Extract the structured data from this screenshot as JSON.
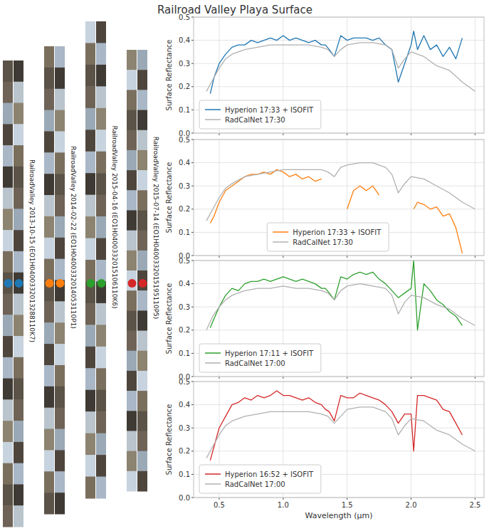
{
  "title": "Railroad Valley Playa Surface",
  "strips": [
    {
      "label": "RailroadValley 2013-10-15 (EO1H0400332013288110K7)",
      "color": "#1f77b4"
    },
    {
      "label": "RailroadValley 2014-02-22 (EO1H0400332014053110P1)",
      "color": "#ff7f0e"
    },
    {
      "label": "RailroadValley 2015-04-16 (EO1H0400332015106110K6)",
      "color": "#2ca02c"
    },
    {
      "label": "RailroadValley 2015-07-14 (EO1H0400332015195110P5)",
      "color": "#d62728"
    }
  ],
  "chart_data": [
    {
      "type": "line",
      "ylabel": "Surface Reflectance",
      "xlim": [
        0.3,
        2.57
      ],
      "ylim": [
        0,
        0.5
      ],
      "xticks": [
        0.5,
        {
          "value": 1,
          "label": "1.0"
        },
        1.5,
        {
          "value": 2,
          "label": "2.0"
        },
        2.5
      ],
      "yticks": [
        {
          "value": 0,
          "label": "0.0"
        },
        0.1,
        0.2,
        0.3,
        0.4,
        0.5
      ],
      "grid": true,
      "legend": "lower left",
      "tick_labels": "y",
      "series": [
        {
          "name": "Hyperion 17:33 + ISOFIT",
          "color": "#1f77b4",
          "x": [
            0.43,
            0.46,
            0.5,
            0.55,
            0.6,
            0.65,
            0.7,
            0.75,
            0.8,
            0.85,
            0.9,
            0.95,
            1.0,
            1.05,
            1.1,
            1.15,
            1.2,
            1.25,
            1.3,
            1.33,
            1.36,
            1.4,
            1.45,
            1.5,
            1.55,
            1.6,
            1.65,
            1.7,
            1.75,
            1.8,
            1.85,
            1.9,
            1.95,
            2.0,
            2.02,
            2.05,
            2.1,
            2.15,
            2.2,
            2.25,
            2.3,
            2.35,
            2.4
          ],
          "values": [
            0.17,
            0.24,
            0.3,
            0.34,
            0.37,
            0.38,
            0.38,
            0.4,
            0.39,
            0.4,
            0.41,
            0.4,
            0.42,
            0.4,
            0.41,
            0.4,
            0.39,
            0.4,
            0.38,
            0.38,
            0.36,
            0.33,
            0.42,
            0.4,
            0.41,
            0.41,
            0.41,
            0.4,
            0.41,
            0.38,
            0.36,
            0.22,
            0.3,
            0.38,
            0.44,
            0.36,
            0.42,
            0.36,
            0.38,
            0.33,
            0.37,
            0.32,
            0.41
          ]
        },
        {
          "name": "RadCalNet 17:30",
          "color": "#b0b0b0",
          "x": [
            0.4,
            0.45,
            0.5,
            0.55,
            0.6,
            0.7,
            0.8,
            0.9,
            1.0,
            1.1,
            1.2,
            1.3,
            1.35,
            1.4,
            1.45,
            1.5,
            1.6,
            1.7,
            1.8,
            1.85,
            1.9,
            1.95,
            2.0,
            2.1,
            2.2,
            2.3,
            2.4,
            2.5
          ],
          "values": [
            0.18,
            0.23,
            0.28,
            0.32,
            0.34,
            0.36,
            0.37,
            0.38,
            0.38,
            0.38,
            0.38,
            0.37,
            0.36,
            0.33,
            0.36,
            0.38,
            0.39,
            0.39,
            0.38,
            0.36,
            0.28,
            0.32,
            0.35,
            0.33,
            0.29,
            0.27,
            0.22,
            0.18
          ]
        }
      ]
    },
    {
      "type": "line",
      "ylabel": "Surface Reflectance",
      "xlim": [
        0.3,
        2.57
      ],
      "ylim": [
        0,
        0.5
      ],
      "xticks": [
        0.5,
        {
          "value": 1,
          "label": "1.0"
        },
        1.5,
        {
          "value": 2,
          "label": "2.0"
        },
        2.5
      ],
      "yticks": [
        {
          "value": 0,
          "label": "0.0"
        },
        0.1,
        0.2,
        0.3,
        0.4,
        0.5
      ],
      "grid": true,
      "legend": "lower center",
      "tick_labels": "y",
      "series": [
        {
          "name": "Hyperion 17:33 + ISOFIT",
          "color": "#ff7f0e",
          "x": [
            0.43,
            0.46,
            0.5,
            0.55,
            0.6,
            0.65,
            0.7,
            0.75,
            0.8,
            0.85,
            0.9,
            0.95,
            1.0,
            1.05,
            1.1,
            1.15,
            1.2,
            1.25,
            1.3,
            1.33,
            1.36,
            1.4,
            1.45,
            1.5,
            1.55,
            1.6,
            1.65,
            1.7,
            1.75,
            1.8,
            1.85,
            1.9,
            1.95,
            2.0,
            2.02,
            2.05,
            2.1,
            2.15,
            2.2,
            2.25,
            2.3,
            2.35,
            2.4
          ],
          "values": [
            0.14,
            0.17,
            0.23,
            0.28,
            0.3,
            0.32,
            0.34,
            0.35,
            0.35,
            0.36,
            0.35,
            0.37,
            0.36,
            0.34,
            0.35,
            0.33,
            0.34,
            0.32,
            0.33,
            null,
            null,
            null,
            null,
            0.2,
            0.28,
            0.3,
            0.28,
            0.3,
            0.26,
            null,
            null,
            null,
            null,
            null,
            0.2,
            0.23,
            0.22,
            0.2,
            0.21,
            0.17,
            0.18,
            0.12,
            0.01
          ]
        },
        {
          "name": "RadCalNet 17:30",
          "color": "#b0b0b0",
          "x": [
            0.4,
            0.45,
            0.5,
            0.55,
            0.6,
            0.7,
            0.8,
            0.9,
            1.0,
            1.1,
            1.2,
            1.3,
            1.35,
            1.4,
            1.45,
            1.5,
            1.6,
            1.7,
            1.8,
            1.85,
            1.9,
            1.95,
            2.0,
            2.1,
            2.2,
            2.3,
            2.4,
            2.5
          ],
          "values": [
            0.15,
            0.2,
            0.25,
            0.29,
            0.31,
            0.34,
            0.35,
            0.36,
            0.37,
            0.37,
            0.37,
            0.37,
            0.36,
            0.34,
            0.38,
            0.39,
            0.4,
            0.4,
            0.38,
            0.35,
            0.27,
            0.31,
            0.34,
            0.33,
            0.3,
            0.27,
            0.23,
            0.2
          ]
        }
      ]
    },
    {
      "type": "line",
      "ylabel": "Surface Reflectance",
      "xlim": [
        0.3,
        2.57
      ],
      "ylim": [
        0,
        0.5
      ],
      "xticks": [
        0.5,
        {
          "value": 1,
          "label": "1.0"
        },
        1.5,
        {
          "value": 2,
          "label": "2.0"
        },
        2.5
      ],
      "yticks": [
        {
          "value": 0,
          "label": "0.0"
        },
        0.1,
        0.2,
        0.3,
        0.4,
        0.5
      ],
      "grid": true,
      "legend": "lower left",
      "tick_labels": "y",
      "series": [
        {
          "name": "Hyperion 17:11 + ISOFIT",
          "color": "#2ca02c",
          "x": [
            0.43,
            0.46,
            0.5,
            0.55,
            0.6,
            0.65,
            0.7,
            0.75,
            0.8,
            0.85,
            0.9,
            0.95,
            1.0,
            1.05,
            1.1,
            1.15,
            1.2,
            1.25,
            1.3,
            1.33,
            1.36,
            1.4,
            1.45,
            1.5,
            1.55,
            1.6,
            1.65,
            1.7,
            1.75,
            1.8,
            1.85,
            1.9,
            1.95,
            2.0,
            2.02,
            2.05,
            2.1,
            2.15,
            2.2,
            2.25,
            2.3,
            2.35,
            2.4
          ],
          "values": [
            0.21,
            0.25,
            0.3,
            0.35,
            0.38,
            0.37,
            0.4,
            0.41,
            0.41,
            0.42,
            0.41,
            0.42,
            0.43,
            0.42,
            0.41,
            0.42,
            0.41,
            0.4,
            0.38,
            0.38,
            0.36,
            0.33,
            0.43,
            0.42,
            0.44,
            0.45,
            0.44,
            0.45,
            0.42,
            0.4,
            0.37,
            0.34,
            0.36,
            0.38,
            0.5,
            0.2,
            0.4,
            0.37,
            0.33,
            0.31,
            0.28,
            0.26,
            0.22
          ]
        },
        {
          "name": "RadCalNet 17:00",
          "color": "#b0b0b0",
          "x": [
            0.4,
            0.45,
            0.5,
            0.55,
            0.6,
            0.7,
            0.8,
            0.9,
            1.0,
            1.1,
            1.2,
            1.3,
            1.35,
            1.4,
            1.45,
            1.5,
            1.6,
            1.7,
            1.8,
            1.85,
            1.9,
            1.95,
            2.0,
            2.1,
            2.2,
            2.3,
            2.4,
            2.5
          ],
          "values": [
            0.2,
            0.26,
            0.3,
            0.33,
            0.35,
            0.37,
            0.38,
            0.38,
            0.39,
            0.38,
            0.38,
            0.37,
            0.36,
            0.33,
            0.37,
            0.39,
            0.4,
            0.39,
            0.38,
            0.35,
            0.27,
            0.32,
            0.35,
            0.34,
            0.31,
            0.29,
            0.25,
            0.22
          ]
        }
      ]
    },
    {
      "type": "line",
      "ylabel": "Surface Reflectance",
      "xlabel": "Wavelength (μm)",
      "xlim": [
        0.3,
        2.57
      ],
      "ylim": [
        0,
        0.5
      ],
      "xticks": [
        0.5,
        {
          "value": 1,
          "label": "1.0"
        },
        1.5,
        {
          "value": 2,
          "label": "2.0"
        },
        2.5
      ],
      "yticks": [
        {
          "value": 0,
          "label": "0.0"
        },
        0.1,
        0.2,
        0.3,
        0.4,
        0.5
      ],
      "grid": true,
      "legend": "lower left",
      "series": [
        {
          "name": "Hyperion 16:52 + ISOFIT",
          "color": "#d62728",
          "x": [
            0.43,
            0.46,
            0.5,
            0.55,
            0.6,
            0.65,
            0.7,
            0.75,
            0.8,
            0.85,
            0.9,
            0.95,
            1.0,
            1.05,
            1.1,
            1.15,
            1.2,
            1.25,
            1.3,
            1.33,
            1.36,
            1.4,
            1.45,
            1.5,
            1.55,
            1.6,
            1.65,
            1.7,
            1.75,
            1.8,
            1.85,
            1.9,
            1.95,
            2.0,
            2.02,
            2.05,
            2.1,
            2.15,
            2.2,
            2.25,
            2.3,
            2.35,
            2.4
          ],
          "values": [
            0.16,
            0.22,
            0.3,
            0.35,
            0.4,
            0.41,
            0.43,
            0.42,
            0.44,
            0.43,
            0.44,
            0.46,
            0.44,
            0.44,
            0.43,
            0.42,
            0.43,
            0.41,
            0.4,
            0.38,
            0.37,
            0.33,
            0.44,
            0.43,
            0.43,
            0.45,
            0.44,
            0.43,
            0.42,
            0.4,
            0.37,
            0.32,
            0.36,
            0.36,
            0.2,
            0.44,
            0.44,
            0.43,
            0.42,
            0.38,
            0.37,
            0.32,
            0.27
          ]
        },
        {
          "name": "RadCalNet 17:00",
          "color": "#b0b0b0",
          "x": [
            0.4,
            0.45,
            0.5,
            0.55,
            0.6,
            0.7,
            0.8,
            0.9,
            1.0,
            1.1,
            1.2,
            1.3,
            1.35,
            1.4,
            1.45,
            1.5,
            1.6,
            1.7,
            1.8,
            1.85,
            1.9,
            1.95,
            2.0,
            2.1,
            2.2,
            2.3,
            2.4,
            2.5
          ],
          "values": [
            0.17,
            0.22,
            0.27,
            0.31,
            0.33,
            0.35,
            0.36,
            0.37,
            0.37,
            0.37,
            0.37,
            0.36,
            0.35,
            0.32,
            0.35,
            0.38,
            0.39,
            0.39,
            0.37,
            0.34,
            0.27,
            0.31,
            0.34,
            0.33,
            0.29,
            0.27,
            0.23,
            0.2
          ]
        }
      ]
    }
  ]
}
